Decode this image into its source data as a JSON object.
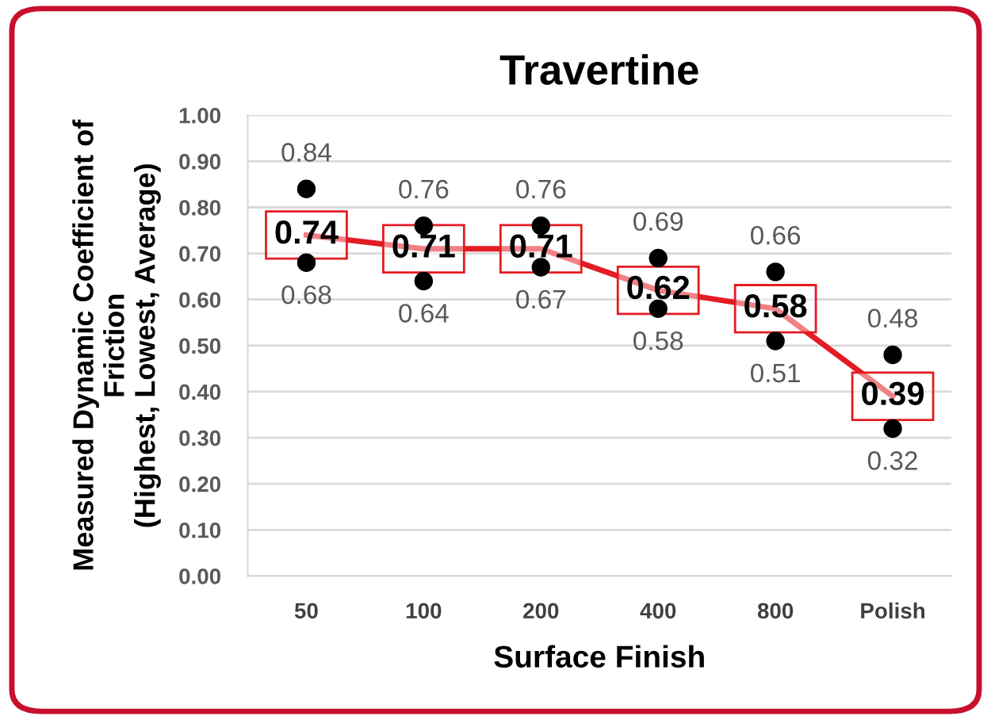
{
  "chart_data": {
    "type": "line",
    "title": "Travertine",
    "xlabel": "Surface Finish",
    "ylabel": "Measured Dynamic Coefficient of\nFriction\n(Highest, Lowest, Average)",
    "categories": [
      "50",
      "100",
      "200",
      "400",
      "800",
      "Polish"
    ],
    "series": [
      {
        "type": "scatter",
        "color": "#000000",
        "marker": "circle",
        "values": [
          0.84,
          0.76,
          0.76,
          0.69,
          0.66,
          0.48
        ]
      },
      {
        "type": "scatter",
        "color": "#000000",
        "marker": "circle",
        "values": [
          0.68,
          0.64,
          0.67,
          0.58,
          0.51,
          0.32
        ]
      },
      {
        "color": "#e31c23",
        "marker": "none",
        "values": [
          0.74,
          0.71,
          0.71,
          0.62,
          0.58,
          0.39
        ]
      }
    ],
    "ylim": [
      0,
      1
    ],
    "yticks": [
      {
        "value": 0,
        "label": "0.00"
      },
      {
        "value": 0.1,
        "label": "0.10"
      },
      {
        "value": 0.2,
        "label": "0.20"
      },
      {
        "value": 0.3,
        "label": "0.30"
      },
      {
        "value": 0.4,
        "label": "0.40"
      },
      {
        "value": 0.5,
        "label": "0.50"
      },
      {
        "value": 0.6,
        "label": "0.60"
      },
      {
        "value": 0.7,
        "label": "0.70"
      },
      {
        "value": 0.8,
        "label": "0.80"
      },
      {
        "value": 0.9,
        "label": "0.90"
      },
      {
        "value": 1,
        "label": "1.00"
      }
    ],
    "grid": "y",
    "legend": false,
    "data_labels": true
  }
}
